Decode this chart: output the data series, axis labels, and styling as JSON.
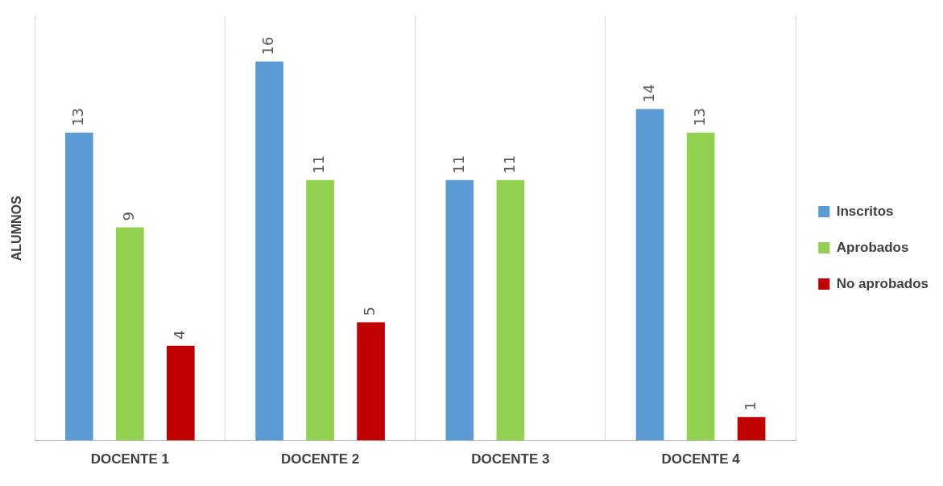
{
  "chart_data": {
    "type": "bar",
    "ylabel": "ALUMNOS",
    "categories": [
      "DOCENTE 1",
      "DOCENTE 2",
      "DOCENTE 3",
      "DOCENTE 4"
    ],
    "series": [
      {
        "name": "Inscritos",
        "color": "#5b9bd5",
        "values": [
          13,
          16,
          11,
          14
        ],
        "value_labels": [
          "13",
          "16",
          "11",
          "14"
        ]
      },
      {
        "name": "Aprobados",
        "color": "#92d050",
        "values": [
          9,
          11,
          11,
          13
        ],
        "value_labels": [
          "9",
          "11",
          "11",
          "13"
        ]
      },
      {
        "name": "No aprobados",
        "color": "#c00000",
        "values": [
          4,
          5,
          0,
          1
        ],
        "value_labels": [
          "4",
          "5",
          null,
          "1"
        ]
      }
    ],
    "grid": "x",
    "legend": "right"
  }
}
